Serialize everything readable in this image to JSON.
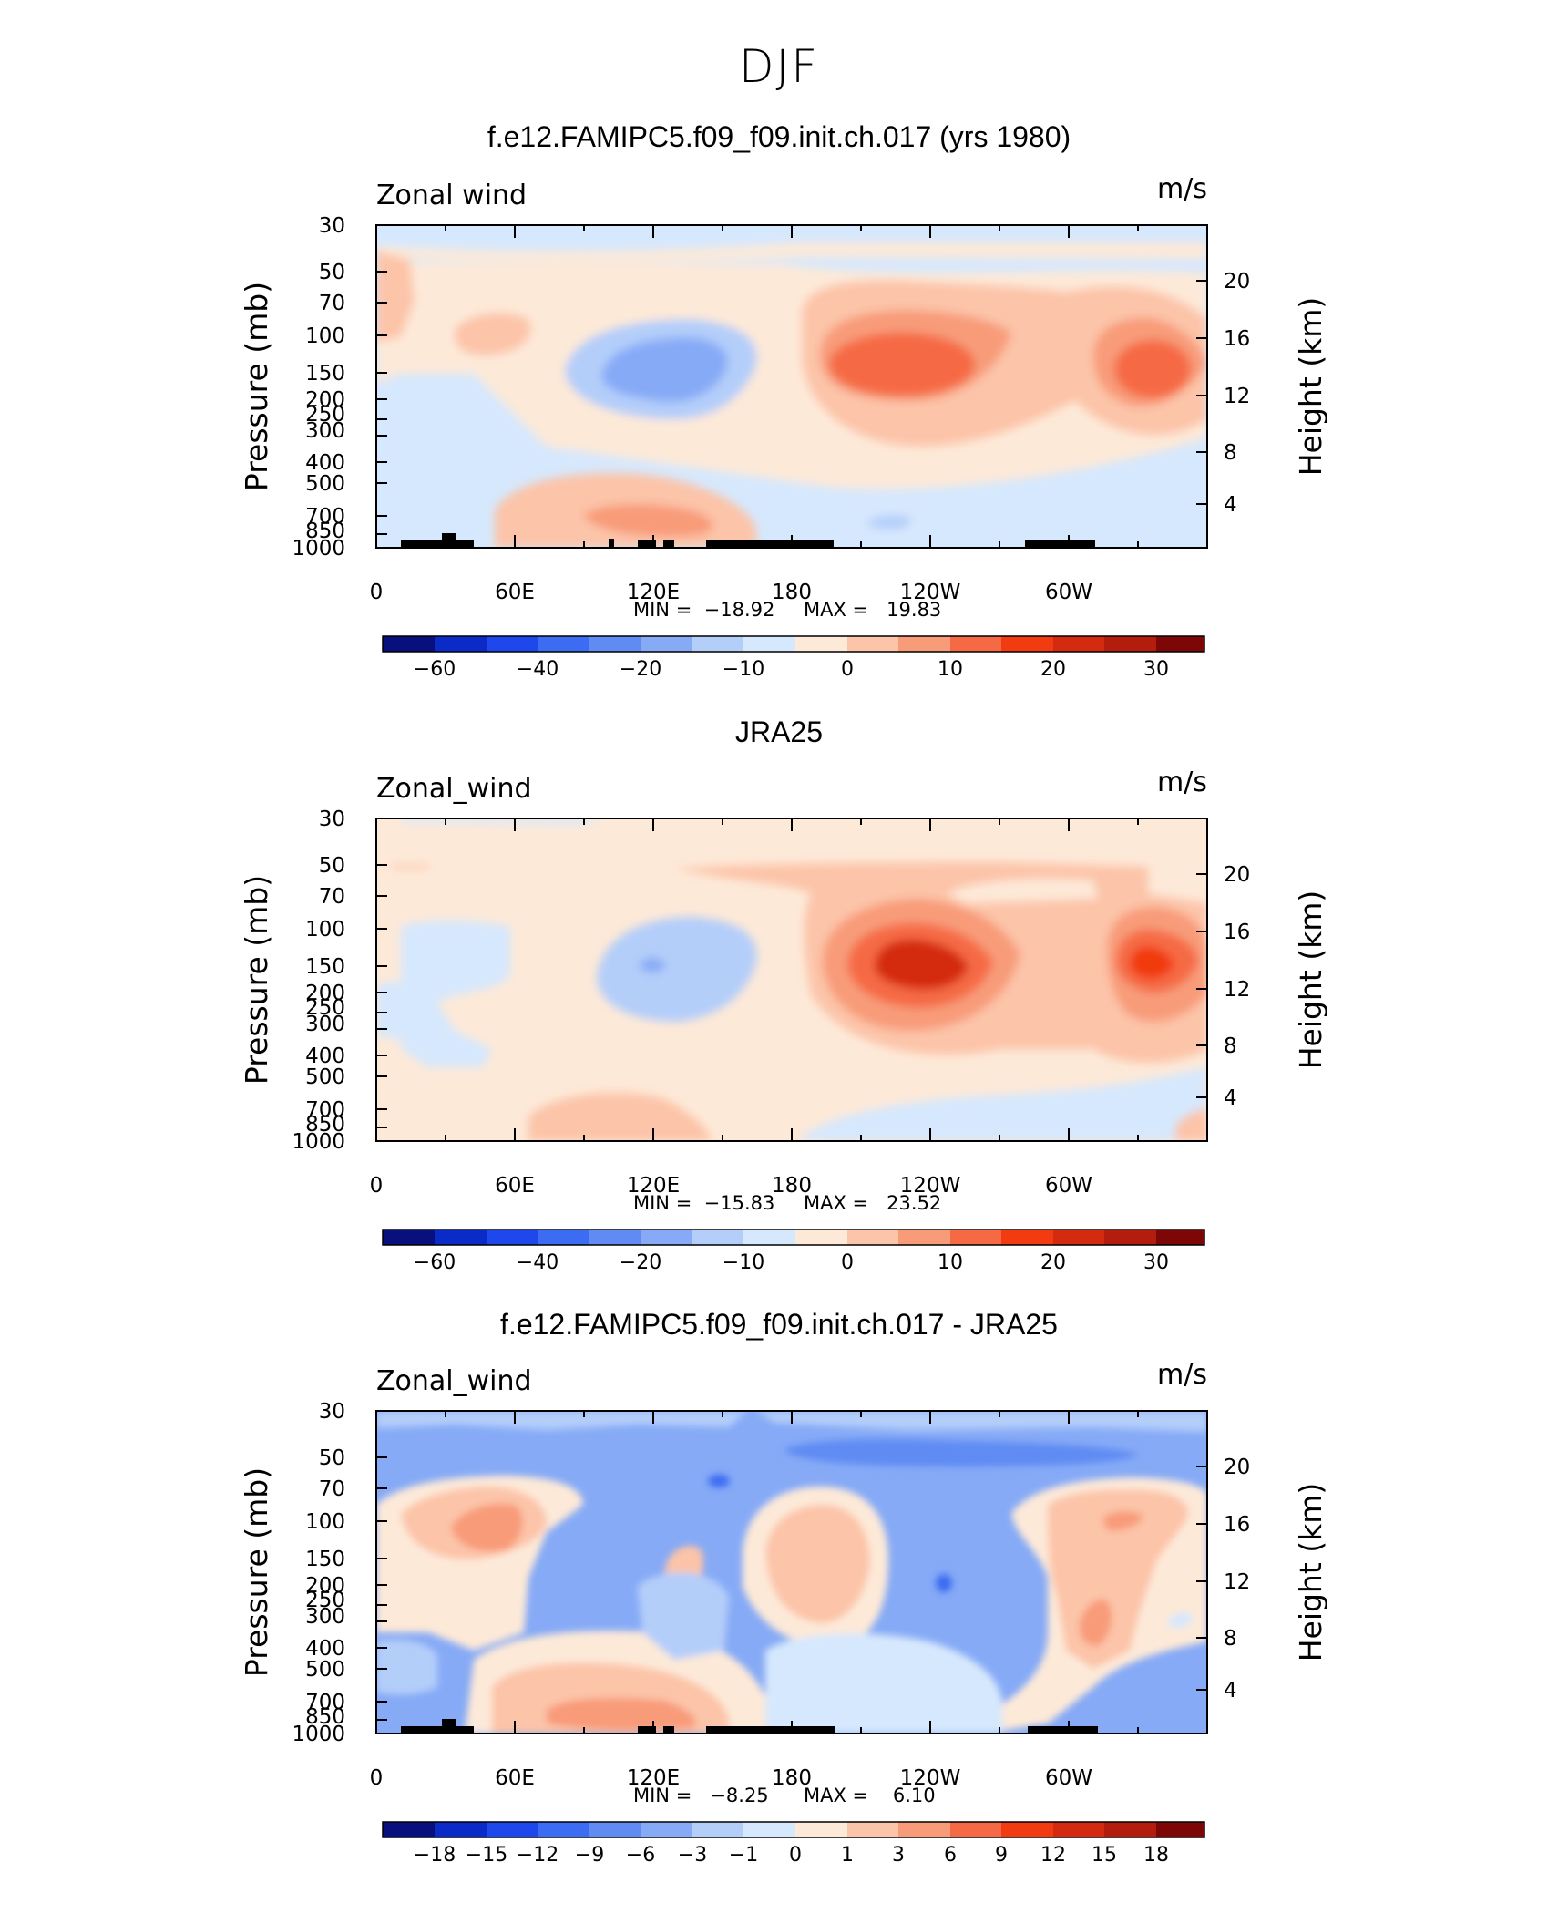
{
  "title": "DJF",
  "chart_data": [
    {
      "type": "contour",
      "title": "f.e12.FAMIPC5.f09_f09.init.ch.017 (yrs 1980)",
      "left_label": "Zonal wind",
      "right_label": "m/s",
      "ylabel": "Pressure (mb)",
      "ylabel_right": "Height (km)",
      "yticks": [
        "30",
        "50",
        "70",
        "100",
        "150",
        "200",
        "250",
        "300",
        "400",
        "500",
        "700",
        "850",
        "1000"
      ],
      "yticks_right": [
        "20",
        "16",
        "12",
        "8",
        "4"
      ],
      "xticks": [
        "0",
        "60E",
        "120E",
        "180",
        "120W",
        "60W"
      ],
      "xlim": [
        0,
        360
      ],
      "min_text": "MIN =  −18.92",
      "max_text": "MAX =   19.83",
      "colorbar_labels": [
        "−60",
        "−40",
        "−20",
        "−10",
        "0",
        "10",
        "20",
        "30"
      ],
      "features": [
        {
          "lon": 135,
          "p": 150,
          "value": -15
        },
        {
          "lon": 218,
          "p": 150,
          "value": 19.8
        },
        {
          "lon": 333,
          "p": 150,
          "value": 18
        },
        {
          "lon": 150,
          "p": 800,
          "value": 8
        },
        {
          "lon": 55,
          "p": 120,
          "value": 4
        }
      ]
    },
    {
      "type": "contour",
      "title": "JRA25",
      "left_label": "Zonal_wind",
      "right_label": "m/s",
      "ylabel": "Pressure (mb)",
      "ylabel_right": "Height (km)",
      "yticks": [
        "30",
        "50",
        "70",
        "100",
        "150",
        "200",
        "250",
        "300",
        "400",
        "500",
        "700",
        "850",
        "1000"
      ],
      "yticks_right": [
        "20",
        "16",
        "12",
        "8",
        "4"
      ],
      "xticks": [
        "0",
        "60E",
        "120E",
        "180",
        "120W",
        "60W"
      ],
      "xlim": [
        0,
        360
      ],
      "min_text": "MIN =  −15.83",
      "max_text": "MAX =   23.52",
      "colorbar_labels": [
        "−60",
        "−40",
        "−20",
        "−10",
        "0",
        "10",
        "20",
        "30"
      ],
      "features": [
        {
          "lon": 118,
          "p": 150,
          "value": -15.8
        },
        {
          "lon": 228,
          "p": 150,
          "value": 23.5
        },
        {
          "lon": 333,
          "p": 150,
          "value": 19
        },
        {
          "lon": 100,
          "p": 800,
          "value": 6
        }
      ]
    },
    {
      "type": "contour",
      "title": "f.e12.FAMIPC5.f09_f09.init.ch.017 - JRA25",
      "left_label": "Zonal_wind",
      "right_label": "m/s",
      "ylabel": "Pressure (mb)",
      "ylabel_right": "Height (km)",
      "yticks": [
        "30",
        "50",
        "70",
        "100",
        "150",
        "200",
        "250",
        "300",
        "400",
        "500",
        "700",
        "850",
        "1000"
      ],
      "yticks_right": [
        "20",
        "16",
        "12",
        "8",
        "4"
      ],
      "xticks": [
        "0",
        "60E",
        "120E",
        "180",
        "120W",
        "60W"
      ],
      "xlim": [
        0,
        360
      ],
      "min_text": "MIN =   −8.25",
      "max_text": "MAX =    6.10",
      "colorbar_labels": [
        "−18",
        "−15",
        "−12",
        "−9",
        "−6",
        "−3",
        "−1",
        "0",
        "1",
        "3",
        "6",
        "9",
        "12",
        "15",
        "18"
      ],
      "features": [
        {
          "lon": 210,
          "p": 55,
          "value": -8.25
        },
        {
          "lon": 190,
          "p": 150,
          "value": 4
        },
        {
          "lon": 45,
          "p": 130,
          "value": 3.5
        },
        {
          "lon": 315,
          "p": 110,
          "value": 3.5
        },
        {
          "lon": 150,
          "p": 750,
          "value": 3
        },
        {
          "lon": 245,
          "p": 250,
          "value": -7
        }
      ]
    }
  ]
}
